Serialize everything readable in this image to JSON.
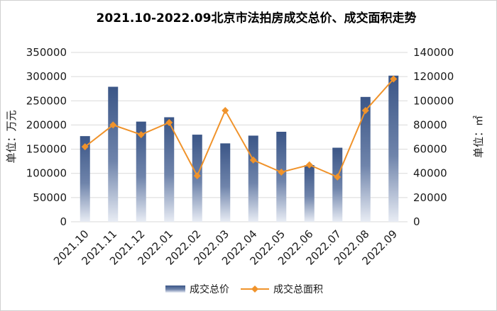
{
  "colors": {
    "bar_top": "#3b5687",
    "bar_bottom": "#e8ecf4",
    "line": "#f0932b",
    "grid": "#d9d9d9"
  },
  "chart_data": {
    "type": "bar",
    "title": "2021.10-2022.09北京市法拍房成交总价、成交面积走势",
    "ylabel_left": "单位：万元",
    "ylabel_right": "单位：㎡",
    "categories": [
      "2021.10",
      "2021.11",
      "2021.12",
      "2022.01",
      "2022.02",
      "2022.03",
      "2022.04",
      "2022.05",
      "2022.06",
      "2022.07",
      "2022.08",
      "2022.09"
    ],
    "ylim_left": [
      0,
      350000
    ],
    "ylim_right": [
      0,
      140000
    ],
    "yticks_left": [
      "0",
      "50000",
      "100000",
      "150000",
      "200000",
      "250000",
      "300000",
      "350000"
    ],
    "yticks_right": [
      "0",
      "20000",
      "40000",
      "60000",
      "80000",
      "100000",
      "120000",
      "140000"
    ],
    "grid": true,
    "legend_position": "bottom",
    "series": [
      {
        "name": "成交总价",
        "type": "bar",
        "axis": "left",
        "values": [
          177000,
          279000,
          207000,
          216000,
          180000,
          162000,
          178000,
          186000,
          117000,
          153000,
          258000,
          302000
        ]
      },
      {
        "name": "成交总面积",
        "type": "line",
        "axis": "right",
        "values": [
          62000,
          80000,
          72000,
          82000,
          38000,
          92000,
          51000,
          41000,
          47000,
          37000,
          92000,
          118000
        ]
      }
    ]
  }
}
